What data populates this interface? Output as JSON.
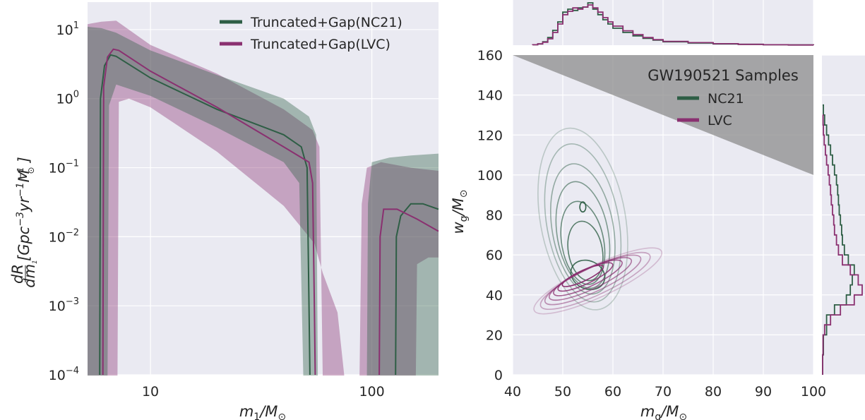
{
  "colors": {
    "nc21": "#2e5e45",
    "lvc": "#8a3070",
    "panel_bg": "#eaeaf2",
    "grid": "#ffffff",
    "region": "#8c8c8c"
  },
  "chart_data": [
    {
      "type": "area",
      "xscale": "log",
      "yscale": "log",
      "xlim": [
        5.2,
        200
      ],
      "ylim": [
        0.0001,
        25
      ],
      "xticks": [
        {
          "v": 10,
          "label": "10"
        },
        {
          "v": 100,
          "label": "100"
        }
      ],
      "yticks": [
        {
          "v": 10,
          "base": "10",
          "exp": "1"
        },
        {
          "v": 1,
          "base": "10",
          "exp": "0"
        },
        {
          "v": 0.1,
          "base": "10",
          "exp": "−1"
        },
        {
          "v": 0.01,
          "base": "10",
          "exp": "−2"
        },
        {
          "v": 0.001,
          "base": "10",
          "exp": "−3"
        },
        {
          "v": 0.0001,
          "base": "10",
          "exp": "−4"
        }
      ],
      "xlabel": {
        "main": "m",
        "sub": "1",
        "rest": "/M",
        "sub2": "⊙"
      },
      "ylabel": {
        "frac_num": "dR",
        "frac_den": "dm",
        "frac_den_sub": "1",
        "body": "[Gpc",
        "sup1": "−3",
        "mid": "yr",
        "sup2": "−1",
        "unit": "M",
        "unit_sub": "⊙",
        "sup3": "−1",
        "close": "]"
      },
      "legend": {
        "placement": "top-right",
        "entries": [
          "Truncated+Gap(NC21)",
          "Truncated+Gap(LVC)"
        ]
      },
      "series": [
        {
          "name": "Truncated+Gap(NC21)",
          "color_key": "nc21",
          "median": [
            [
              5.9,
              0.0001
            ],
            [
              5.95,
              1
            ],
            [
              6.2,
              3
            ],
            [
              6.6,
              4.3
            ],
            [
              7,
              4.1
            ],
            [
              10,
              2
            ],
            [
              20,
              0.7
            ],
            [
              40,
              0.3
            ],
            [
              48,
              0.2
            ],
            [
              51,
              0.1
            ],
            [
              52,
              0.001
            ],
            [
              52.5,
              0.0001
            ]
          ],
          "lower": [
            [
              6.4,
              0.0001
            ],
            [
              6.5,
              0.8
            ],
            [
              7,
              1.6
            ],
            [
              10,
              1.1
            ],
            [
              20,
              0.38
            ],
            [
              40,
              0.12
            ],
            [
              47,
              0.06
            ],
            [
              49,
              0.0001
            ]
          ],
          "upper": [
            [
              5.2,
              11
            ],
            [
              6,
              10.5
            ],
            [
              7,
              9
            ],
            [
              10,
              5
            ],
            [
              20,
              2.2
            ],
            [
              40,
              1
            ],
            [
              52,
              0.55
            ],
            [
              56,
              0.3
            ],
            [
              57,
              0.0001
            ]
          ],
          "upper_gap_mass": [
            [
              95,
              0.0001
            ],
            [
              96,
              0.03
            ],
            [
              100,
              0.12
            ],
            [
              120,
              0.14
            ],
            [
              150,
              0.15
            ],
            [
              200,
              0.16
            ]
          ],
          "median_gap_mass": [
            [
              128,
              0.0001
            ],
            [
              129,
              0.01
            ],
            [
              135,
              0.02
            ],
            [
              150,
              0.03
            ],
            [
              170,
              0.03
            ],
            [
              200,
              0.025
            ]
          ],
          "lower_gap_mass": [
            [
              200,
              0.0001
            ]
          ]
        },
        {
          "name": "Truncated+Gap(LVC)",
          "color_key": "lvc",
          "median": [
            [
              6.1,
              0.0001
            ],
            [
              6.15,
              1.5
            ],
            [
              6.4,
              4
            ],
            [
              6.8,
              5.2
            ],
            [
              7.2,
              5
            ],
            [
              10,
              2.5
            ],
            [
              20,
              0.75
            ],
            [
              40,
              0.2
            ],
            [
              52,
              0.12
            ],
            [
              54,
              0.06
            ],
            [
              55,
              0.001
            ],
            [
              55.5,
              0.0001
            ]
          ],
          "lower": [
            [
              7.1,
              0.0001
            ],
            [
              7.2,
              0.9
            ],
            [
              8,
              1
            ],
            [
              10,
              0.75
            ],
            [
              20,
              0.17
            ],
            [
              40,
              0.028
            ],
            [
              55,
              0.008
            ],
            [
              60,
              0.003
            ],
            [
              70,
              0.0008
            ],
            [
              75,
              0.0001
            ]
          ],
          "upper": [
            [
              5.2,
              12
            ],
            [
              6,
              13
            ],
            [
              7,
              13.5
            ],
            [
              10,
              6
            ],
            [
              20,
              2.3
            ],
            [
              40,
              0.7
            ],
            [
              54,
              0.35
            ],
            [
              58,
              0.2
            ],
            [
              60,
              0.0001
            ]
          ],
          "upper_gap_mass": [
            [
              88,
              0.0001
            ],
            [
              90,
              0.03
            ],
            [
              95,
              0.1
            ],
            [
              110,
              0.12
            ],
            [
              150,
              0.1
            ],
            [
              200,
              0.09
            ]
          ],
          "median_gap_mass": [
            [
              108,
              0.0001
            ],
            [
              109,
              0.01
            ],
            [
              113,
              0.025
            ],
            [
              130,
              0.025
            ],
            [
              160,
              0.018
            ],
            [
              200,
              0.012
            ]
          ],
          "lower_gap_mass": [
            [
              158,
              0.0001
            ],
            [
              160,
              0.004
            ],
            [
              180,
              0.005
            ],
            [
              200,
              0.005
            ]
          ]
        }
      ]
    },
    {
      "type": "scatter",
      "subtype": "kde-contour-with-marginals",
      "xlim": [
        40,
        100
      ],
      "ylim": [
        0,
        160
      ],
      "xticks": [
        40,
        50,
        60,
        70,
        80,
        90,
        100
      ],
      "yticks": [
        0,
        20,
        40,
        60,
        80,
        100,
        120,
        140,
        160
      ],
      "xlabel": {
        "main": "m",
        "sub": "g",
        "rest": "/M",
        "sub2": "⊙"
      },
      "ylabel": {
        "main": "w",
        "sub": "g",
        "rest": "/M",
        "sub2": "⊙"
      },
      "excluded_region": [
        [
          40,
          160
        ],
        [
          100,
          160
        ],
        [
          100,
          100
        ]
      ],
      "legend": {
        "placement": "top-right",
        "title": "GW190521 Samples",
        "entries": [
          "NC21",
          "LVC"
        ]
      },
      "series": [
        {
          "name": "NC21",
          "color_key": "nc21",
          "contour_center": [
            54,
            75
          ],
          "contours": [
            {
              "cx": 54,
              "cy": 78,
              "rx": 8.5,
              "ry": 46,
              "rot": -10
            },
            {
              "cx": 54,
              "cy": 76,
              "rx": 7.2,
              "ry": 40,
              "rot": -10
            },
            {
              "cx": 54,
              "cy": 73,
              "rx": 6.1,
              "ry": 33,
              "rot": -10
            },
            {
              "cx": 54,
              "cy": 70,
              "rx": 5.1,
              "ry": 27,
              "rot": -10
            },
            {
              "cx": 54,
              "cy": 66,
              "rx": 4.2,
              "ry": 21,
              "rot": -10
            },
            {
              "cx": 54.5,
              "cy": 62,
              "rx": 3.4,
              "ry": 15,
              "rot": -10
            },
            {
              "cx": 55,
              "cy": 50,
              "rx": 3.5,
              "ry": 7,
              "rot": 25
            },
            {
              "cx": 54,
              "cy": 84,
              "rx": 0.6,
              "ry": 2.5,
              "rot": 0
            }
          ],
          "marginal_x": {
            "bins": [
              44,
              45,
              46,
              47,
              48,
              49,
              50,
              51,
              52,
              53,
              54,
              55,
              56,
              57,
              58,
              59,
              60,
              62,
              64,
              66,
              68,
              70,
              75,
              80,
              85,
              90,
              95,
              100
            ],
            "values": [
              0.01,
              0.03,
              0.08,
              0.18,
              0.35,
              0.55,
              0.78,
              0.85,
              0.82,
              0.88,
              0.9,
              1.0,
              0.85,
              0.72,
              0.6,
              0.5,
              0.4,
              0.3,
              0.22,
              0.16,
              0.12,
              0.08,
              0.05,
              0.03,
              0.02,
              0.01,
              0.005
            ]
          },
          "marginal_y": {
            "bins": [
              0,
              10,
              20,
              30,
              35,
              40,
              45,
              50,
              55,
              60,
              65,
              70,
              75,
              80,
              85,
              90,
              95,
              100,
              105,
              110,
              115,
              120,
              125,
              130,
              135
            ],
            "values": [
              0.0,
              0.02,
              0.1,
              0.3,
              0.6,
              0.7,
              0.75,
              0.8,
              0.65,
              0.55,
              0.5,
              0.48,
              0.45,
              0.42,
              0.4,
              0.38,
              0.35,
              0.3,
              0.25,
              0.2,
              0.15,
              0.1,
              0.05,
              0.02
            ]
          }
        },
        {
          "name": "LVC",
          "color_key": "lvc",
          "contour_center": [
            55,
            48
          ],
          "contours": [
            {
              "cx": 57,
              "cy": 47,
              "rx": 14,
              "ry": 8,
              "rot": -25
            },
            {
              "cx": 56.5,
              "cy": 47,
              "rx": 12,
              "ry": 7,
              "rot": -25
            },
            {
              "cx": 56,
              "cy": 47.5,
              "rx": 10.5,
              "ry": 6,
              "rot": -25
            },
            {
              "cx": 55.5,
              "cy": 48,
              "rx": 9,
              "ry": 5.2,
              "rot": -25
            },
            {
              "cx": 55,
              "cy": 48.5,
              "rx": 7.5,
              "ry": 4.4,
              "rot": -25
            },
            {
              "cx": 54.5,
              "cy": 49,
              "rx": 6,
              "ry": 3.5,
              "rot": -25
            },
            {
              "cx": 54,
              "cy": 49.5,
              "rx": 4.5,
              "ry": 2.6,
              "rot": -25
            }
          ],
          "marginal_x": {
            "bins": [
              44,
              45,
              46,
              47,
              48,
              49,
              50,
              51,
              52,
              53,
              54,
              55,
              56,
              57,
              58,
              59,
              60,
              62,
              64,
              66,
              68,
              70,
              75,
              80,
              85,
              90,
              95,
              100
            ],
            "values": [
              0.01,
              0.03,
              0.07,
              0.15,
              0.3,
              0.5,
              0.72,
              0.8,
              0.88,
              0.85,
              0.9,
              0.95,
              0.88,
              0.78,
              0.65,
              0.55,
              0.45,
              0.34,
              0.25,
              0.18,
              0.13,
              0.09,
              0.06,
              0.035,
              0.02,
              0.01,
              0.005
            ]
          },
          "marginal_y": {
            "bins": [
              0,
              10,
              20,
              25,
              30,
              35,
              40,
              45,
              50,
              55,
              60,
              65,
              70,
              75,
              80,
              85,
              90,
              95,
              100,
              105,
              110,
              115,
              120,
              125,
              130
            ],
            "values": [
              0.0,
              0.01,
              0.05,
              0.2,
              0.45,
              0.8,
              1.0,
              0.9,
              0.7,
              0.5,
              0.4,
              0.35,
              0.3,
              0.28,
              0.25,
              0.22,
              0.2,
              0.17,
              0.14,
              0.1,
              0.07,
              0.04,
              0.02,
              0.01
            ]
          }
        }
      ]
    }
  ]
}
